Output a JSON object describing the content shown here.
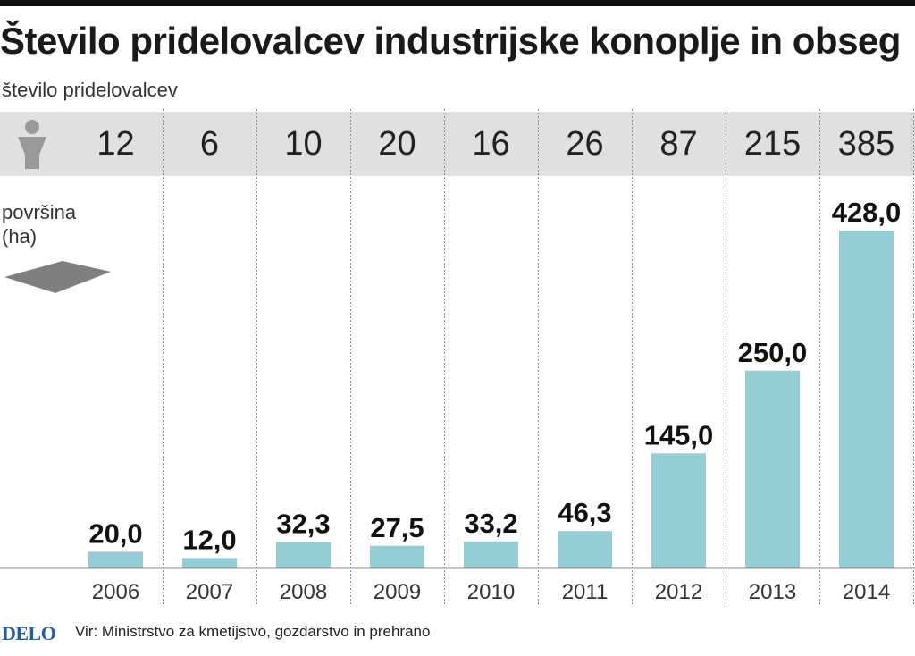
{
  "title": "Število pridelovalcev industrijske konoplje in obseg",
  "subtitle": "število pridelovalcev",
  "area_label_line1": "površina",
  "area_label_line2": "(ha)",
  "icons": {
    "producer": "person-icon",
    "area": "field-area-icon"
  },
  "colors": {
    "bar": "#94cdd3",
    "band": "#e0e0e0",
    "logo": "#1f5fa8"
  },
  "footer": {
    "logo": "DELO",
    "source": "Vir: Ministrstvo za kmetijstvo, gozdarstvo in prehrano"
  },
  "chart_data": {
    "type": "bar",
    "title": "Število pridelovalcev industrijske konoplje in obseg",
    "xlabel": "",
    "ylabel": "površina (ha)",
    "categories": [
      "2006",
      "2007",
      "2008",
      "2009",
      "2010",
      "2011",
      "2012",
      "2013",
      "2014"
    ],
    "values": [
      20.0,
      12.0,
      32.3,
      27.5,
      33.2,
      46.3,
      145.0,
      250.0,
      428.0
    ],
    "value_labels": [
      "20,0",
      "12,0",
      "32,3",
      "27,5",
      "33,2",
      "46,3",
      "145,0",
      "250,0",
      "428,0"
    ],
    "producers": [
      "12",
      "6",
      "10",
      "20",
      "16",
      "26",
      "87",
      "215",
      "385"
    ],
    "ylim": [
      0,
      428
    ],
    "grid": false
  }
}
